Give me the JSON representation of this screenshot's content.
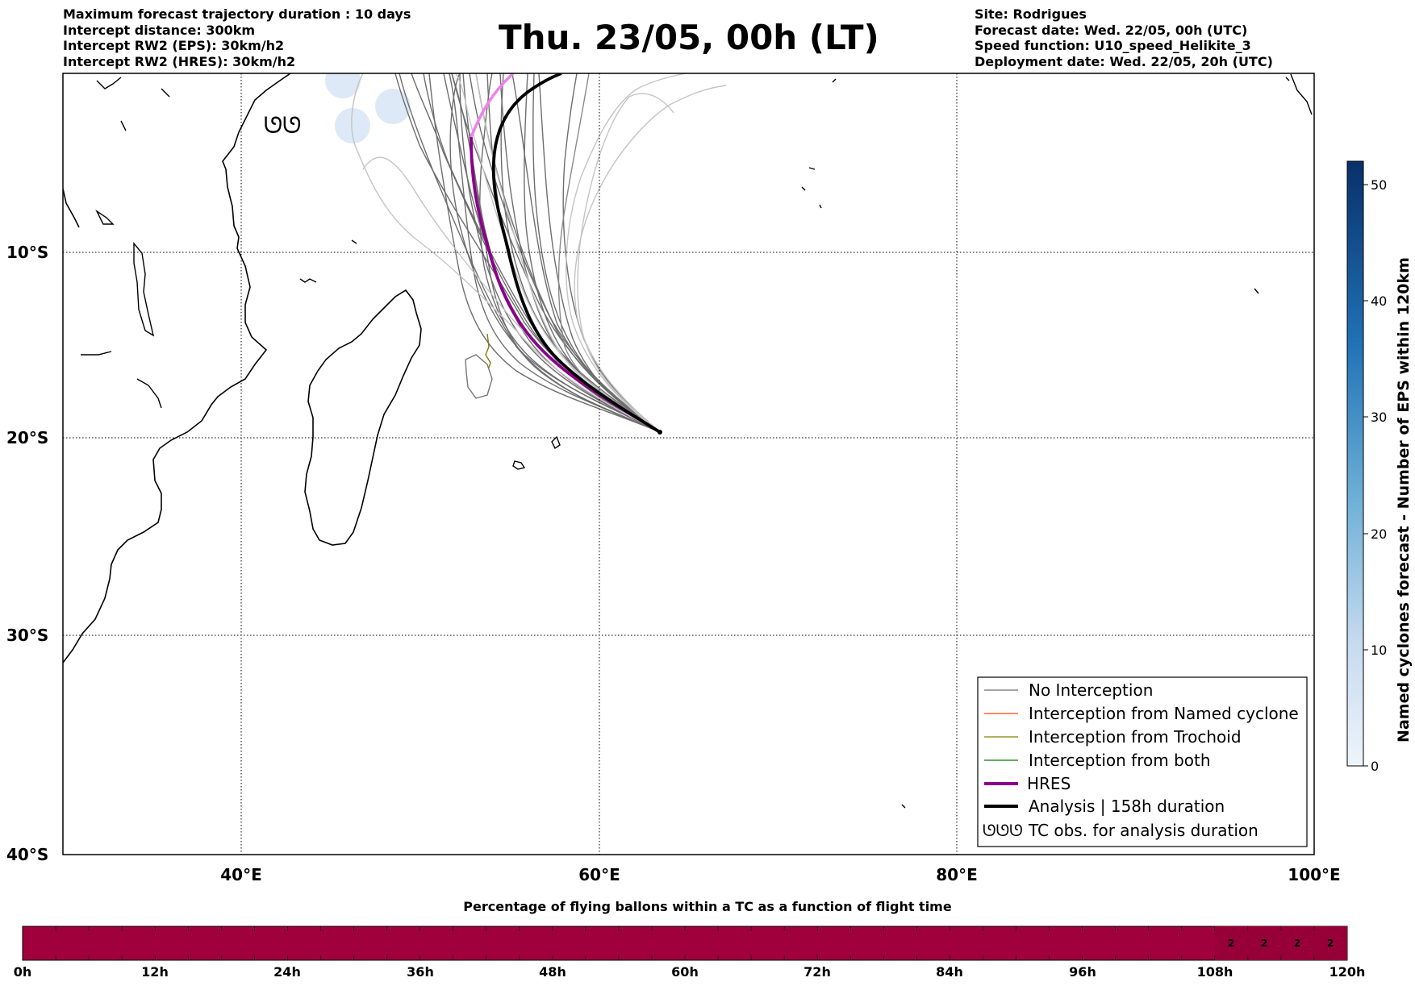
{
  "header_left": {
    "lines": [
      "Maximum forecast trajectory duration : 10 days",
      "Intercept distance: 300km",
      "Intercept RW2 (EPS):  30km/h2",
      "Intercept RW2 (HRES): 30km/h2"
    ]
  },
  "title": "Thu. 23/05, 00h (LT)",
  "header_right": {
    "lines": [
      "Site: Rodrigues",
      "Forecast date: Wed. 22/05, 00h (UTC)",
      "Speed function: U10_speed_Helikite_3",
      "Deployment date: Wed. 22/05, 20h (UTC)"
    ]
  },
  "map": {
    "lat_labels": [
      "10°S",
      "20°S",
      "30°S",
      "40°S"
    ],
    "lon_labels": [
      "40°E",
      "60°E",
      "80°E",
      "100°E"
    ],
    "extent": {
      "lon": [
        30,
        100
      ],
      "lat": [
        -40,
        0
      ]
    },
    "tc_symbol": "ᘎᘎ",
    "colors": {
      "no_interception": "#6e6e6e",
      "named_cyclone": "#ff4500",
      "trochoid": "#808000",
      "both": "#008000",
      "hres": "#8b008b",
      "analysis": "#000000"
    }
  },
  "legend": {
    "items": [
      {
        "label": "No Interception",
        "style": "no_interception"
      },
      {
        "label": "Interception from Named cyclone",
        "style": "named_cyclone"
      },
      {
        "label": "Interception from Trochoid",
        "style": "trochoid"
      },
      {
        "label": "Interception from both",
        "style": "both"
      },
      {
        "label": "HRES",
        "style": "hres"
      },
      {
        "label": "Analysis | 158h duration",
        "style": "analysis"
      },
      {
        "label": "TC obs. for analysis duration",
        "style": "tc_obs"
      }
    ]
  },
  "colorbar": {
    "label": "Named cyclones forecast - Number of EPS within 120km",
    "ticks": [
      "0",
      "10",
      "20",
      "30",
      "40",
      "50"
    ],
    "range": [
      0,
      52
    ]
  },
  "flight_bar": {
    "title": "Percentage of flying ballons within a TC as a function of flight time",
    "ticks": [
      "0h",
      "12h",
      "24h",
      "36h",
      "48h",
      "60h",
      "72h",
      "84h",
      "96h",
      "108h",
      "120h"
    ],
    "fill_color": "#a0003c",
    "highlight_color": "#970036",
    "cell_values": [
      "2",
      "2",
      "2",
      "2"
    ]
  }
}
